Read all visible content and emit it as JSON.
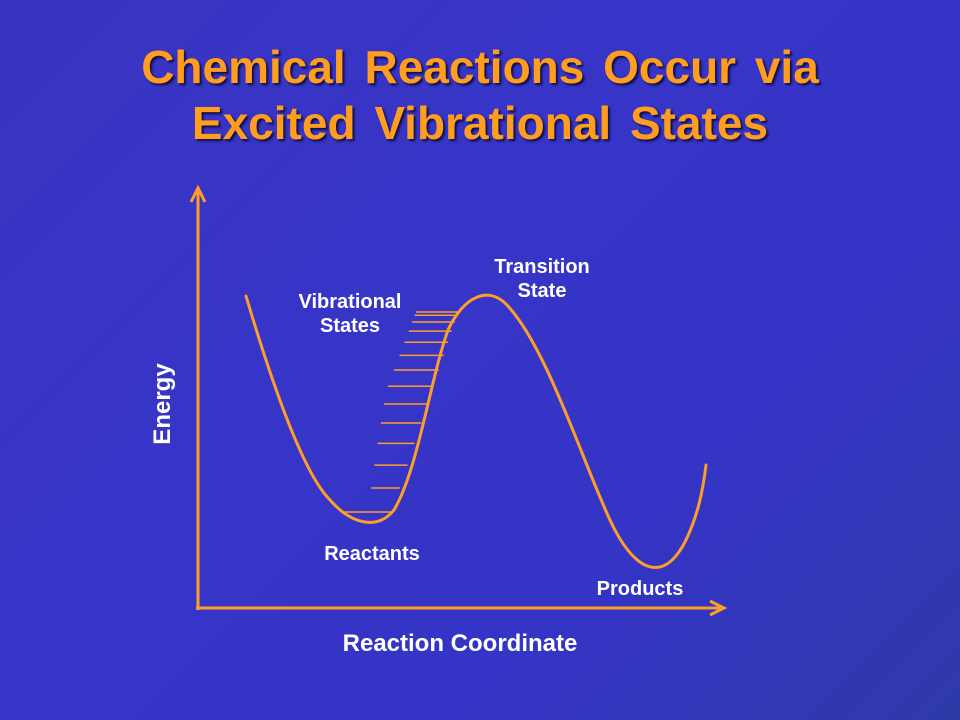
{
  "slide": {
    "title_line_1": "Chemical  Reactions  Occur  via",
    "title_line_2": "Excited  Vibrational  States"
  },
  "diagram": {
    "y_axis_label": "Energy",
    "x_axis_label": "Reaction Coordinate",
    "labels": {
      "vibrational_states_line_1": "Vibrational",
      "vibrational_states_line_2": "States",
      "transition_state_line_1": "Transition",
      "transition_state_line_2": "State",
      "reactants": "Reactants",
      "products": "Products"
    },
    "vibrational_level_count": 14
  },
  "colors": {
    "title": "#ff9d1f",
    "curve": "#ff9d2a",
    "axes": "#ff9d2a",
    "label_text": "#ffffff"
  }
}
